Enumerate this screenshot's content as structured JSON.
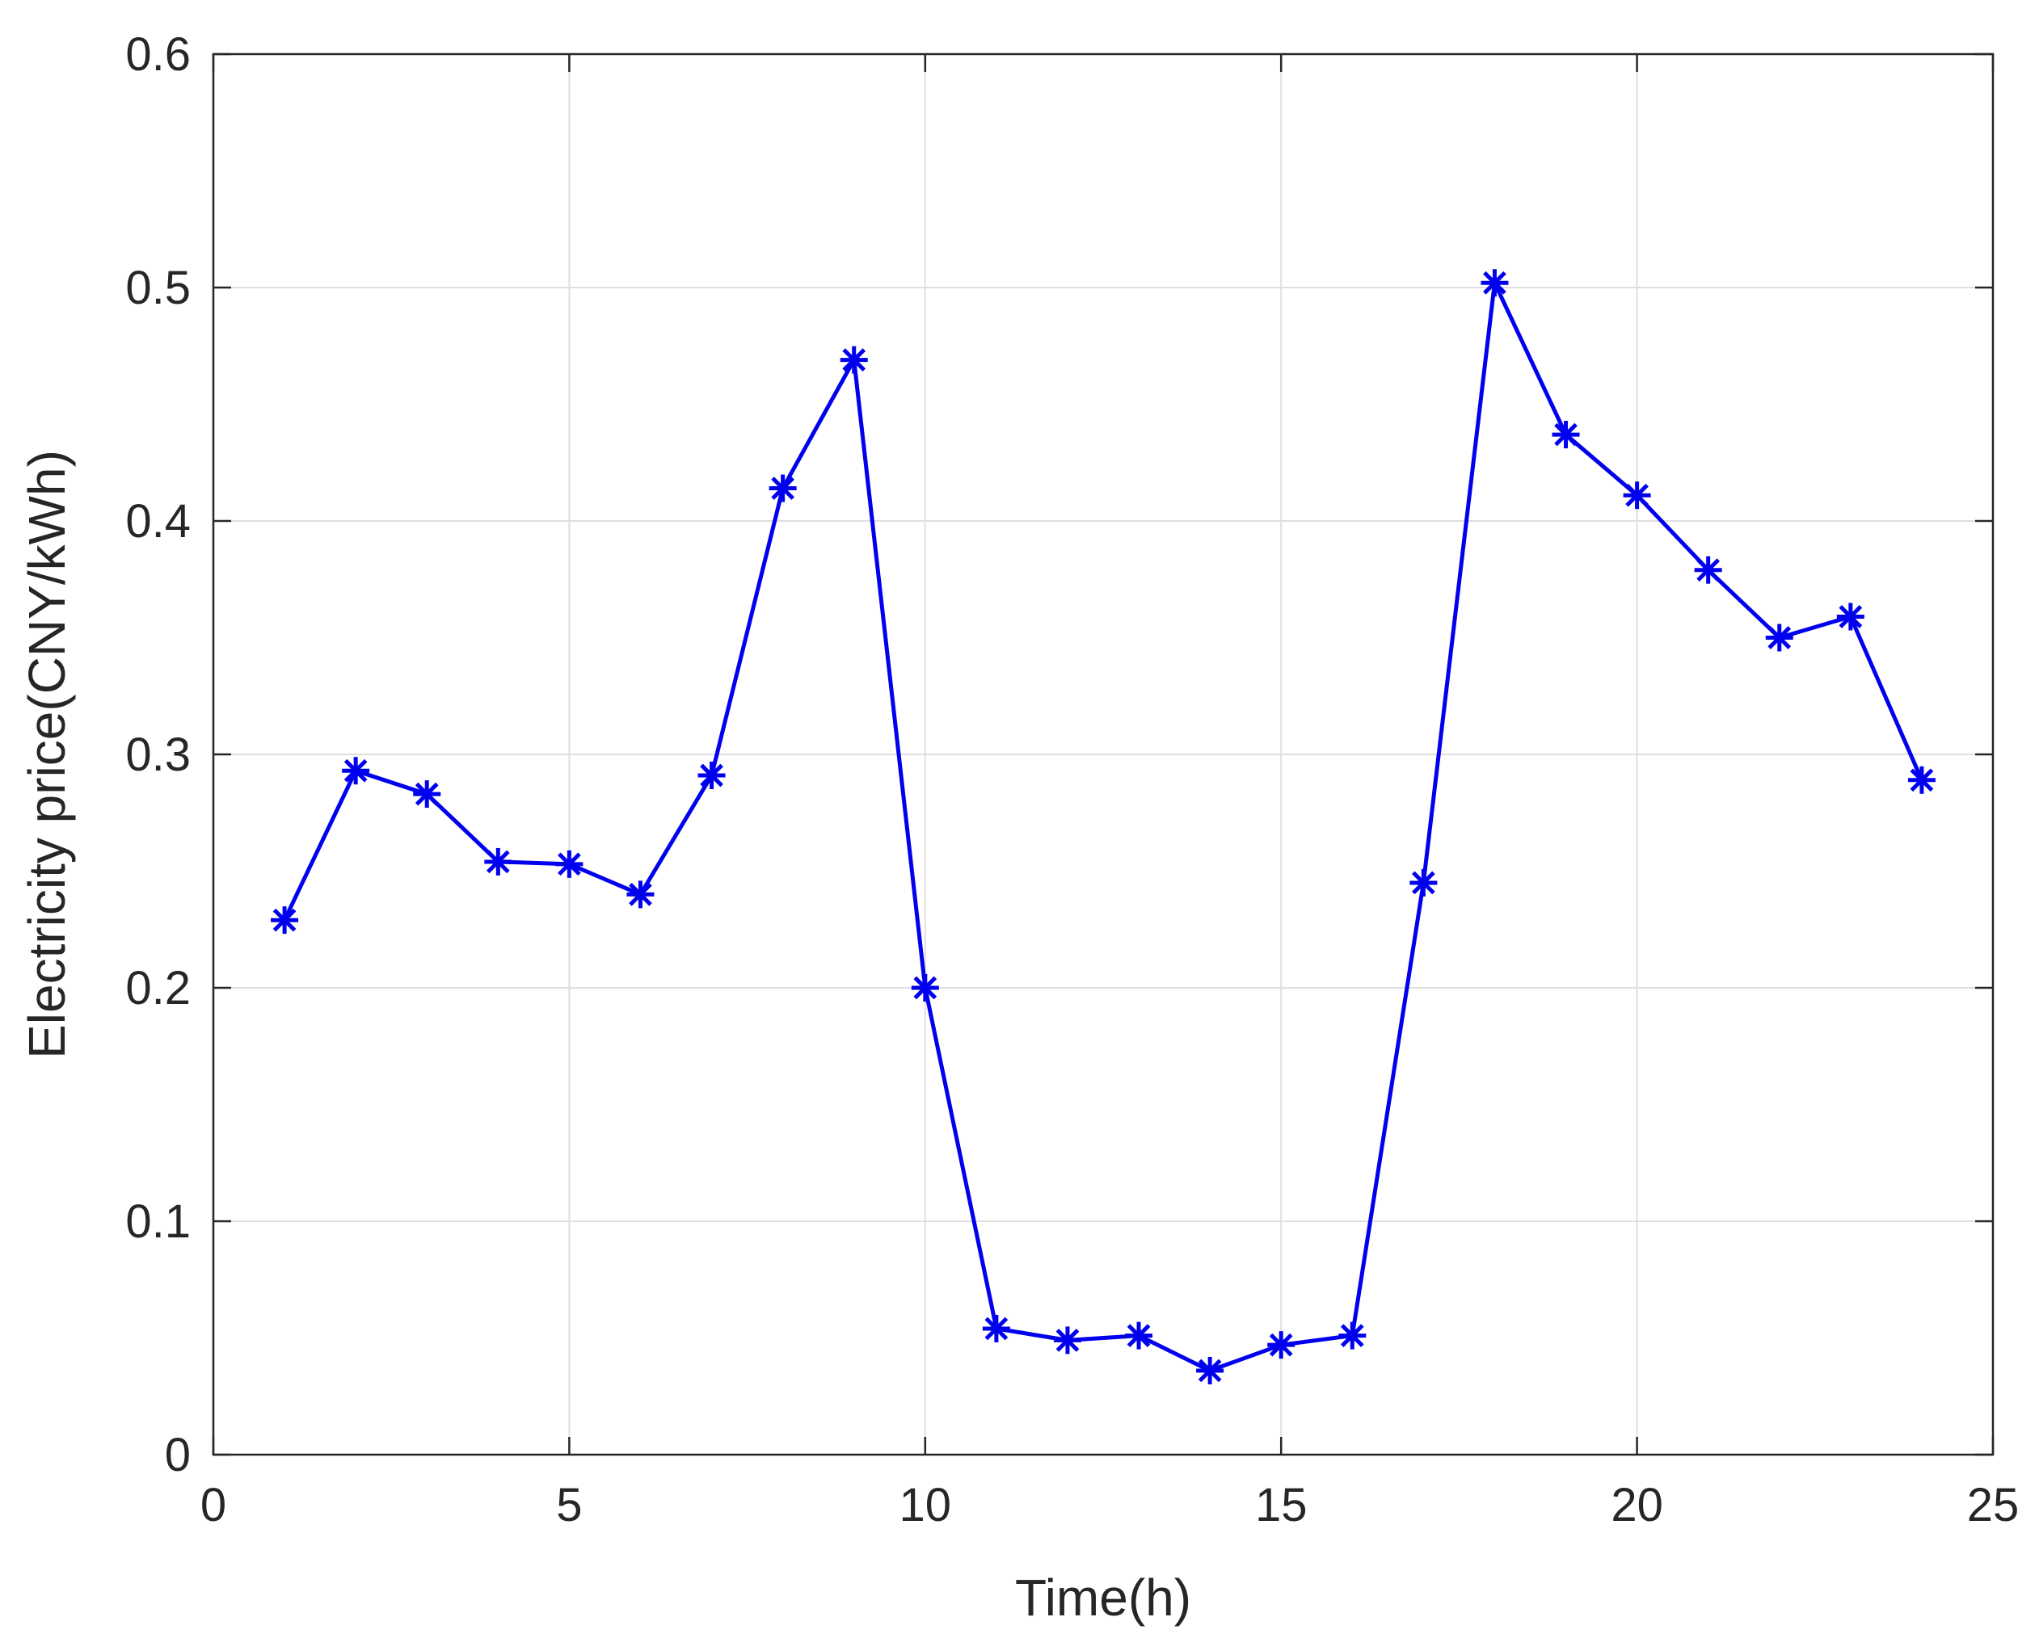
{
  "chart_data": {
    "type": "line",
    "title": "",
    "xlabel": "Time(h)",
    "ylabel": "Electricity price(CNY/kWh)",
    "xlim": [
      0,
      25
    ],
    "ylim": [
      0,
      0.6
    ],
    "x_ticks": [
      0,
      5,
      10,
      15,
      20,
      25
    ],
    "y_ticks": [
      0,
      0.1,
      0.2,
      0.3,
      0.4,
      0.5,
      0.6
    ],
    "x_tick_labels": [
      "0",
      "5",
      "10",
      "15",
      "20",
      "25"
    ],
    "y_tick_labels": [
      "0",
      "0.1",
      "0.2",
      "0.3",
      "0.4",
      "0.5",
      "0.6"
    ],
    "grid": true,
    "legend": "none",
    "series": [
      {
        "color": "#0000ee",
        "marker": "asterisk",
        "x": [
          1,
          2,
          3,
          4,
          5,
          6,
          7,
          8,
          9,
          10,
          11,
          12,
          13,
          14,
          15,
          16,
          17,
          18,
          19,
          20,
          21,
          22,
          23,
          24
        ],
        "y": [
          0.229,
          0.293,
          0.283,
          0.254,
          0.253,
          0.24,
          0.291,
          0.414,
          0.469,
          0.2,
          0.054,
          0.049,
          0.051,
          0.036,
          0.047,
          0.051,
          0.245,
          0.502,
          0.437,
          0.411,
          0.379,
          0.35,
          0.359,
          0.289
        ]
      }
    ]
  }
}
